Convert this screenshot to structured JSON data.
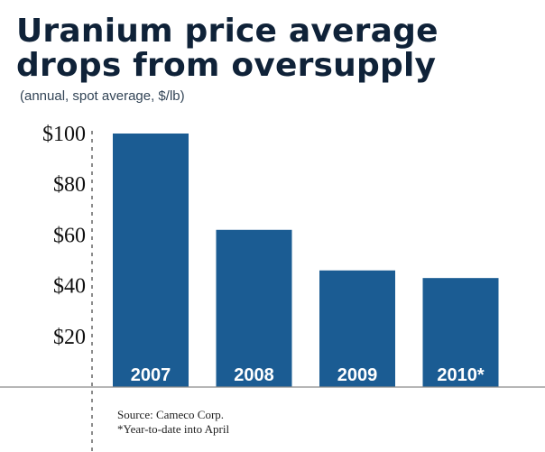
{
  "chart_data": {
    "type": "bar",
    "title": "Uranium price average drops from oversupply",
    "subtitle": "(annual, spot average, $/lb)",
    "categories": [
      "2007",
      "2008",
      "2009",
      "2010*"
    ],
    "values": [
      100,
      62,
      46,
      43
    ],
    "y_ticks": [
      "$20",
      "$40",
      "$60",
      "$80",
      "$100"
    ],
    "y_tick_values": [
      20,
      40,
      60,
      80,
      100
    ],
    "ylim": [
      0,
      100
    ],
    "grid": false,
    "legend": "none",
    "bar_color": "#1b5c93",
    "notes": [
      "Source: Cameco Corp.",
      "*Year-to-date into April"
    ]
  }
}
